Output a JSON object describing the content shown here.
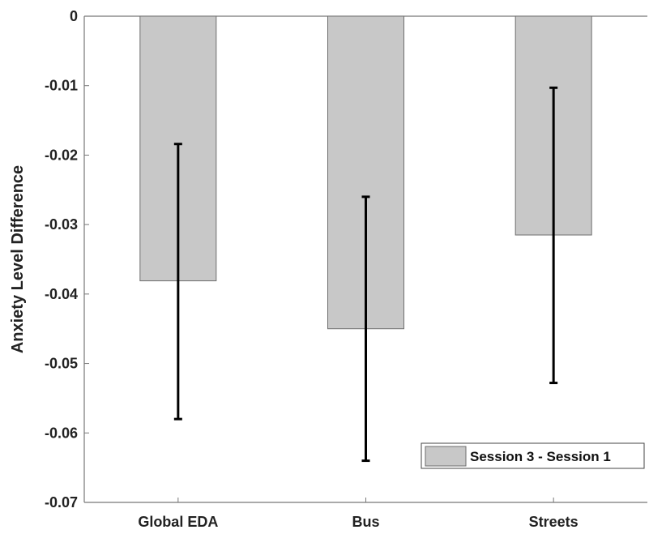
{
  "chart_data": {
    "type": "bar",
    "categories": [
      "Global EDA",
      "Bus",
      "Streets"
    ],
    "series": [
      {
        "name": "Session 3 - Session 1",
        "values": [
          -0.0381,
          -0.045,
          -0.0315
        ],
        "error_bars": [
          [
            -0.058,
            -0.0184
          ],
          [
            -0.064,
            -0.026
          ],
          [
            -0.0528,
            -0.0103
          ]
        ]
      }
    ],
    "title": "",
    "xlabel": "",
    "ylabel": "Anxiety Level Difference",
    "ylim": [
      -0.07,
      0
    ],
    "yticks": [
      0,
      -0.01,
      -0.02,
      -0.03,
      -0.04,
      -0.05,
      -0.06,
      -0.07
    ],
    "ytick_labels": [
      "0",
      "-0.01",
      "-0.02",
      "-0.03",
      "-0.04",
      "-0.05",
      "-0.06",
      "-0.07"
    ],
    "grid": false,
    "legend_position": "bottom-right",
    "colors": {
      "bar_fill": "#c8c8c8",
      "bar_edge": "#6e6e6e",
      "error_bar": "#000000",
      "axis": "#777777"
    }
  }
}
